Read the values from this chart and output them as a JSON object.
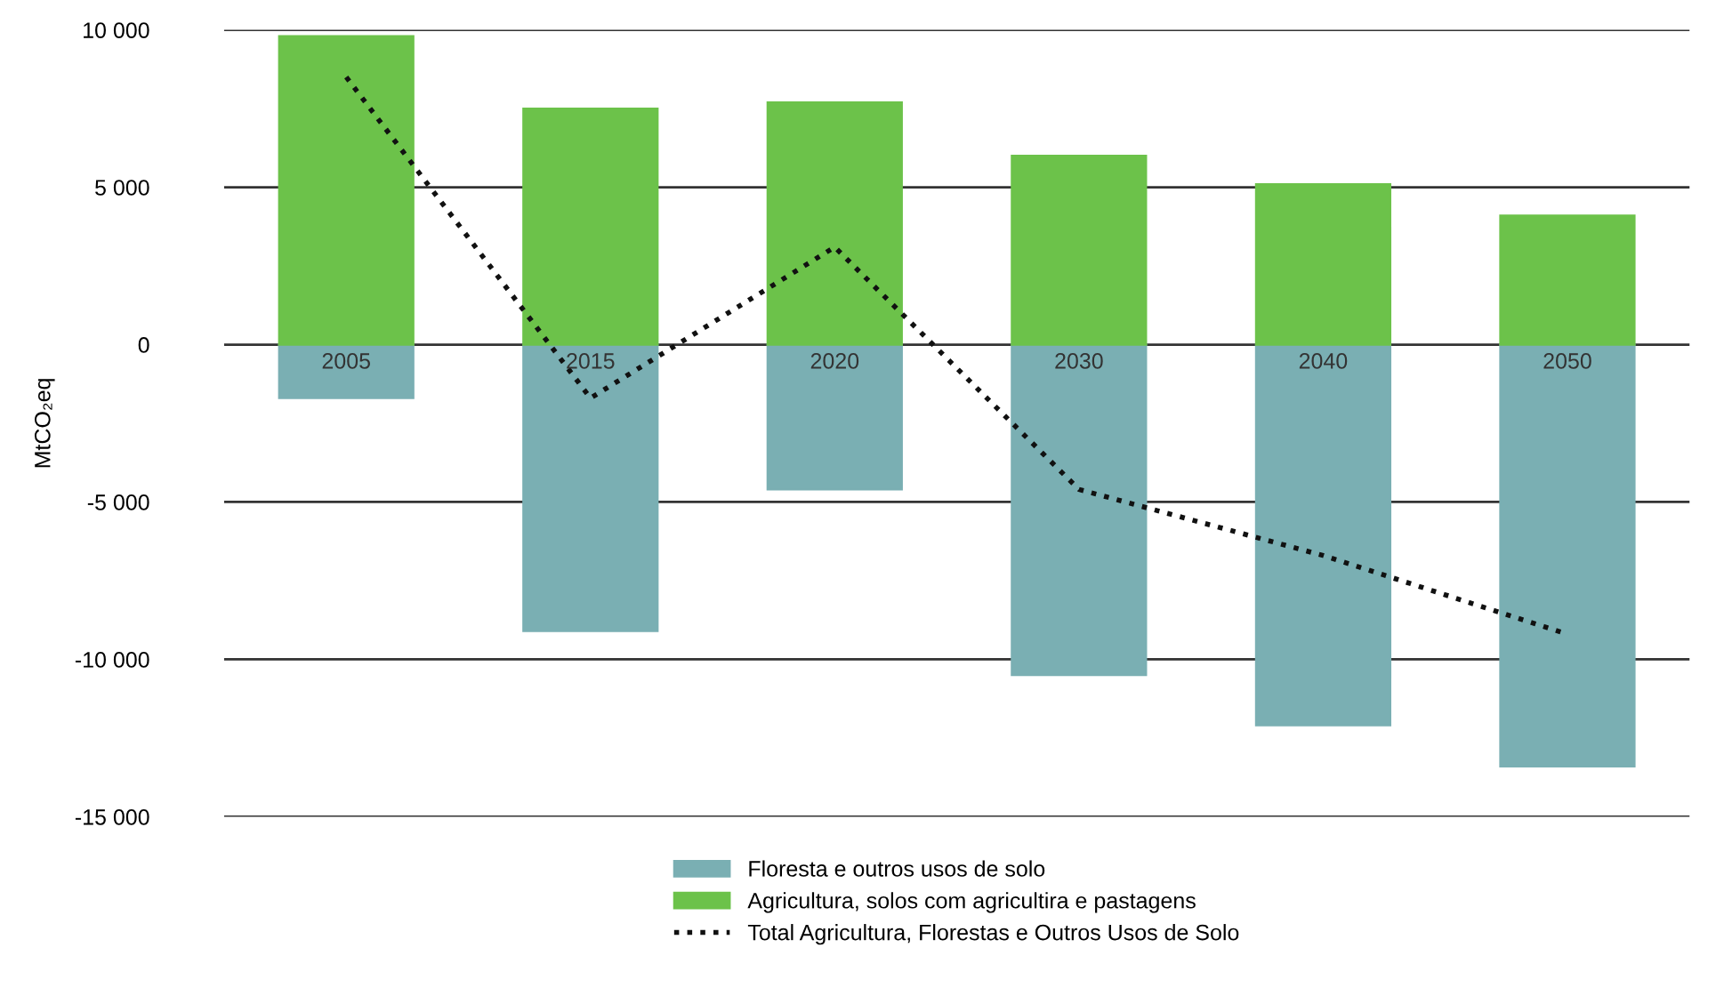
{
  "chart_data": {
    "type": "bar",
    "stacked": true,
    "ylabel": "MtCO₂eq",
    "categories": [
      "2005",
      "2015",
      "2020",
      "2030",
      "2040",
      "2050"
    ],
    "series": [
      {
        "name": "Floresta e outros usos de solo",
        "color": "#7aafb3",
        "values": [
          -1700,
          -9100,
          -4600,
          -10500,
          -12100,
          -13400
        ]
      },
      {
        "name": "Agricultura, solos com agricultira e pastagens",
        "color": "#6cc24a",
        "values": [
          9800,
          7500,
          7700,
          6000,
          5100,
          4100
        ]
      },
      {
        "name": "Total Agricultura, Florestas e Outros Usos de Solo",
        "type": "line",
        "color": "#111111",
        "line_style": "dotted",
        "values": [
          8500,
          -1700,
          3100,
          -4600,
          -6700,
          -9200
        ]
      }
    ],
    "ylim": [
      -15000,
      10000
    ],
    "yticks": [
      {
        "value": -15000,
        "label": "-15 000"
      },
      {
        "value": -10000,
        "label": "-10 000"
      },
      {
        "value": -5000,
        "label": "-5 000"
      },
      0,
      {
        "value": 5000,
        "label": "5 000"
      },
      {
        "value": 10000,
        "label": "10 000"
      }
    ],
    "grid": "y",
    "legend": "bottom"
  }
}
